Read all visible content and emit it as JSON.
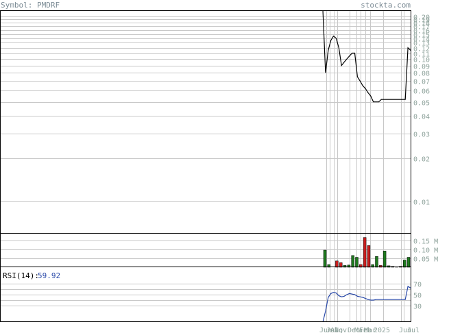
{
  "header": {
    "symbol_label": "Symbol: PMDRF",
    "site": "stockta.com"
  },
  "colors": {
    "price_line": "#000000",
    "volume_up": "#1f7a1f",
    "volume_down": "#c81e1e",
    "rsi_line": "#2848a8",
    "grid": "#c8c8c8",
    "axis_text": "#8fa39c"
  },
  "chart_data": [
    {
      "type": "line",
      "panel": "price",
      "scale": "log",
      "ylim": [
        0.006,
        0.22
      ],
      "y_ticks": [
        "0.20",
        "0.19",
        "0.18",
        "0.17",
        "0.16",
        "0.15",
        "0.14",
        "0.13",
        "0.12",
        "0.11",
        "0.10",
        "0.09",
        "0.08",
        "0.07",
        "0.06",
        "0.05",
        "0.04",
        "0.03",
        "0.02",
        "0.01"
      ],
      "x_ticks": [
        "Jun",
        "Jul",
        "Aug",
        "Nov",
        "Dec",
        "Mar",
        "Feb",
        "Mar",
        "2025",
        "Jun",
        "Jul"
      ],
      "series": [
        {
          "values": [
            0.3,
            0.08,
            0.115,
            0.135,
            0.145,
            0.14,
            0.12,
            0.09,
            0.095,
            0.1,
            0.105,
            0.11,
            0.11,
            0.075,
            0.07,
            0.065,
            0.062,
            0.058,
            0.055,
            0.05,
            0.05,
            0.05,
            0.052,
            0.052,
            0.052,
            0.052,
            0.052,
            0.052,
            0.052,
            0.052,
            0.052,
            0.052,
            0.12,
            0.115
          ]
        }
      ]
    },
    {
      "type": "bar",
      "panel": "volume",
      "ylim": [
        0,
        0.19
      ],
      "unit": "M",
      "y_ticks": [
        "0.15 M",
        "0.10 M",
        "0.05 M"
      ],
      "series": [
        {
          "values": [
            0.095,
            0.015,
            0.0,
            0.035,
            0.025,
            0.01,
            0.012,
            0.065,
            0.055,
            0.015,
            0.165,
            0.12,
            0.015,
            0.06,
            0.01,
            0.09,
            0.008,
            0.005,
            0.002,
            0.005,
            0.04,
            0.055
          ],
          "up": [
            true,
            true,
            false,
            false,
            false,
            true,
            true,
            true,
            true,
            false,
            false,
            false,
            true,
            true,
            false,
            true,
            true,
            true,
            true,
            false,
            true,
            true
          ]
        }
      ]
    },
    {
      "type": "line",
      "panel": "rsi",
      "ylim": [
        0,
        100
      ],
      "label": "RSI(14):",
      "current": "59.92",
      "y_ticks": [
        "70",
        "50",
        "30"
      ],
      "series": [
        {
          "values": [
            0,
            20,
            45,
            52,
            54,
            53,
            48,
            46,
            47,
            50,
            52,
            51,
            50,
            47,
            46,
            45,
            43,
            41,
            40,
            40,
            41,
            41,
            41,
            41,
            41,
            41,
            41,
            41,
            41,
            41,
            41,
            41,
            65,
            62
          ]
        }
      ]
    }
  ]
}
